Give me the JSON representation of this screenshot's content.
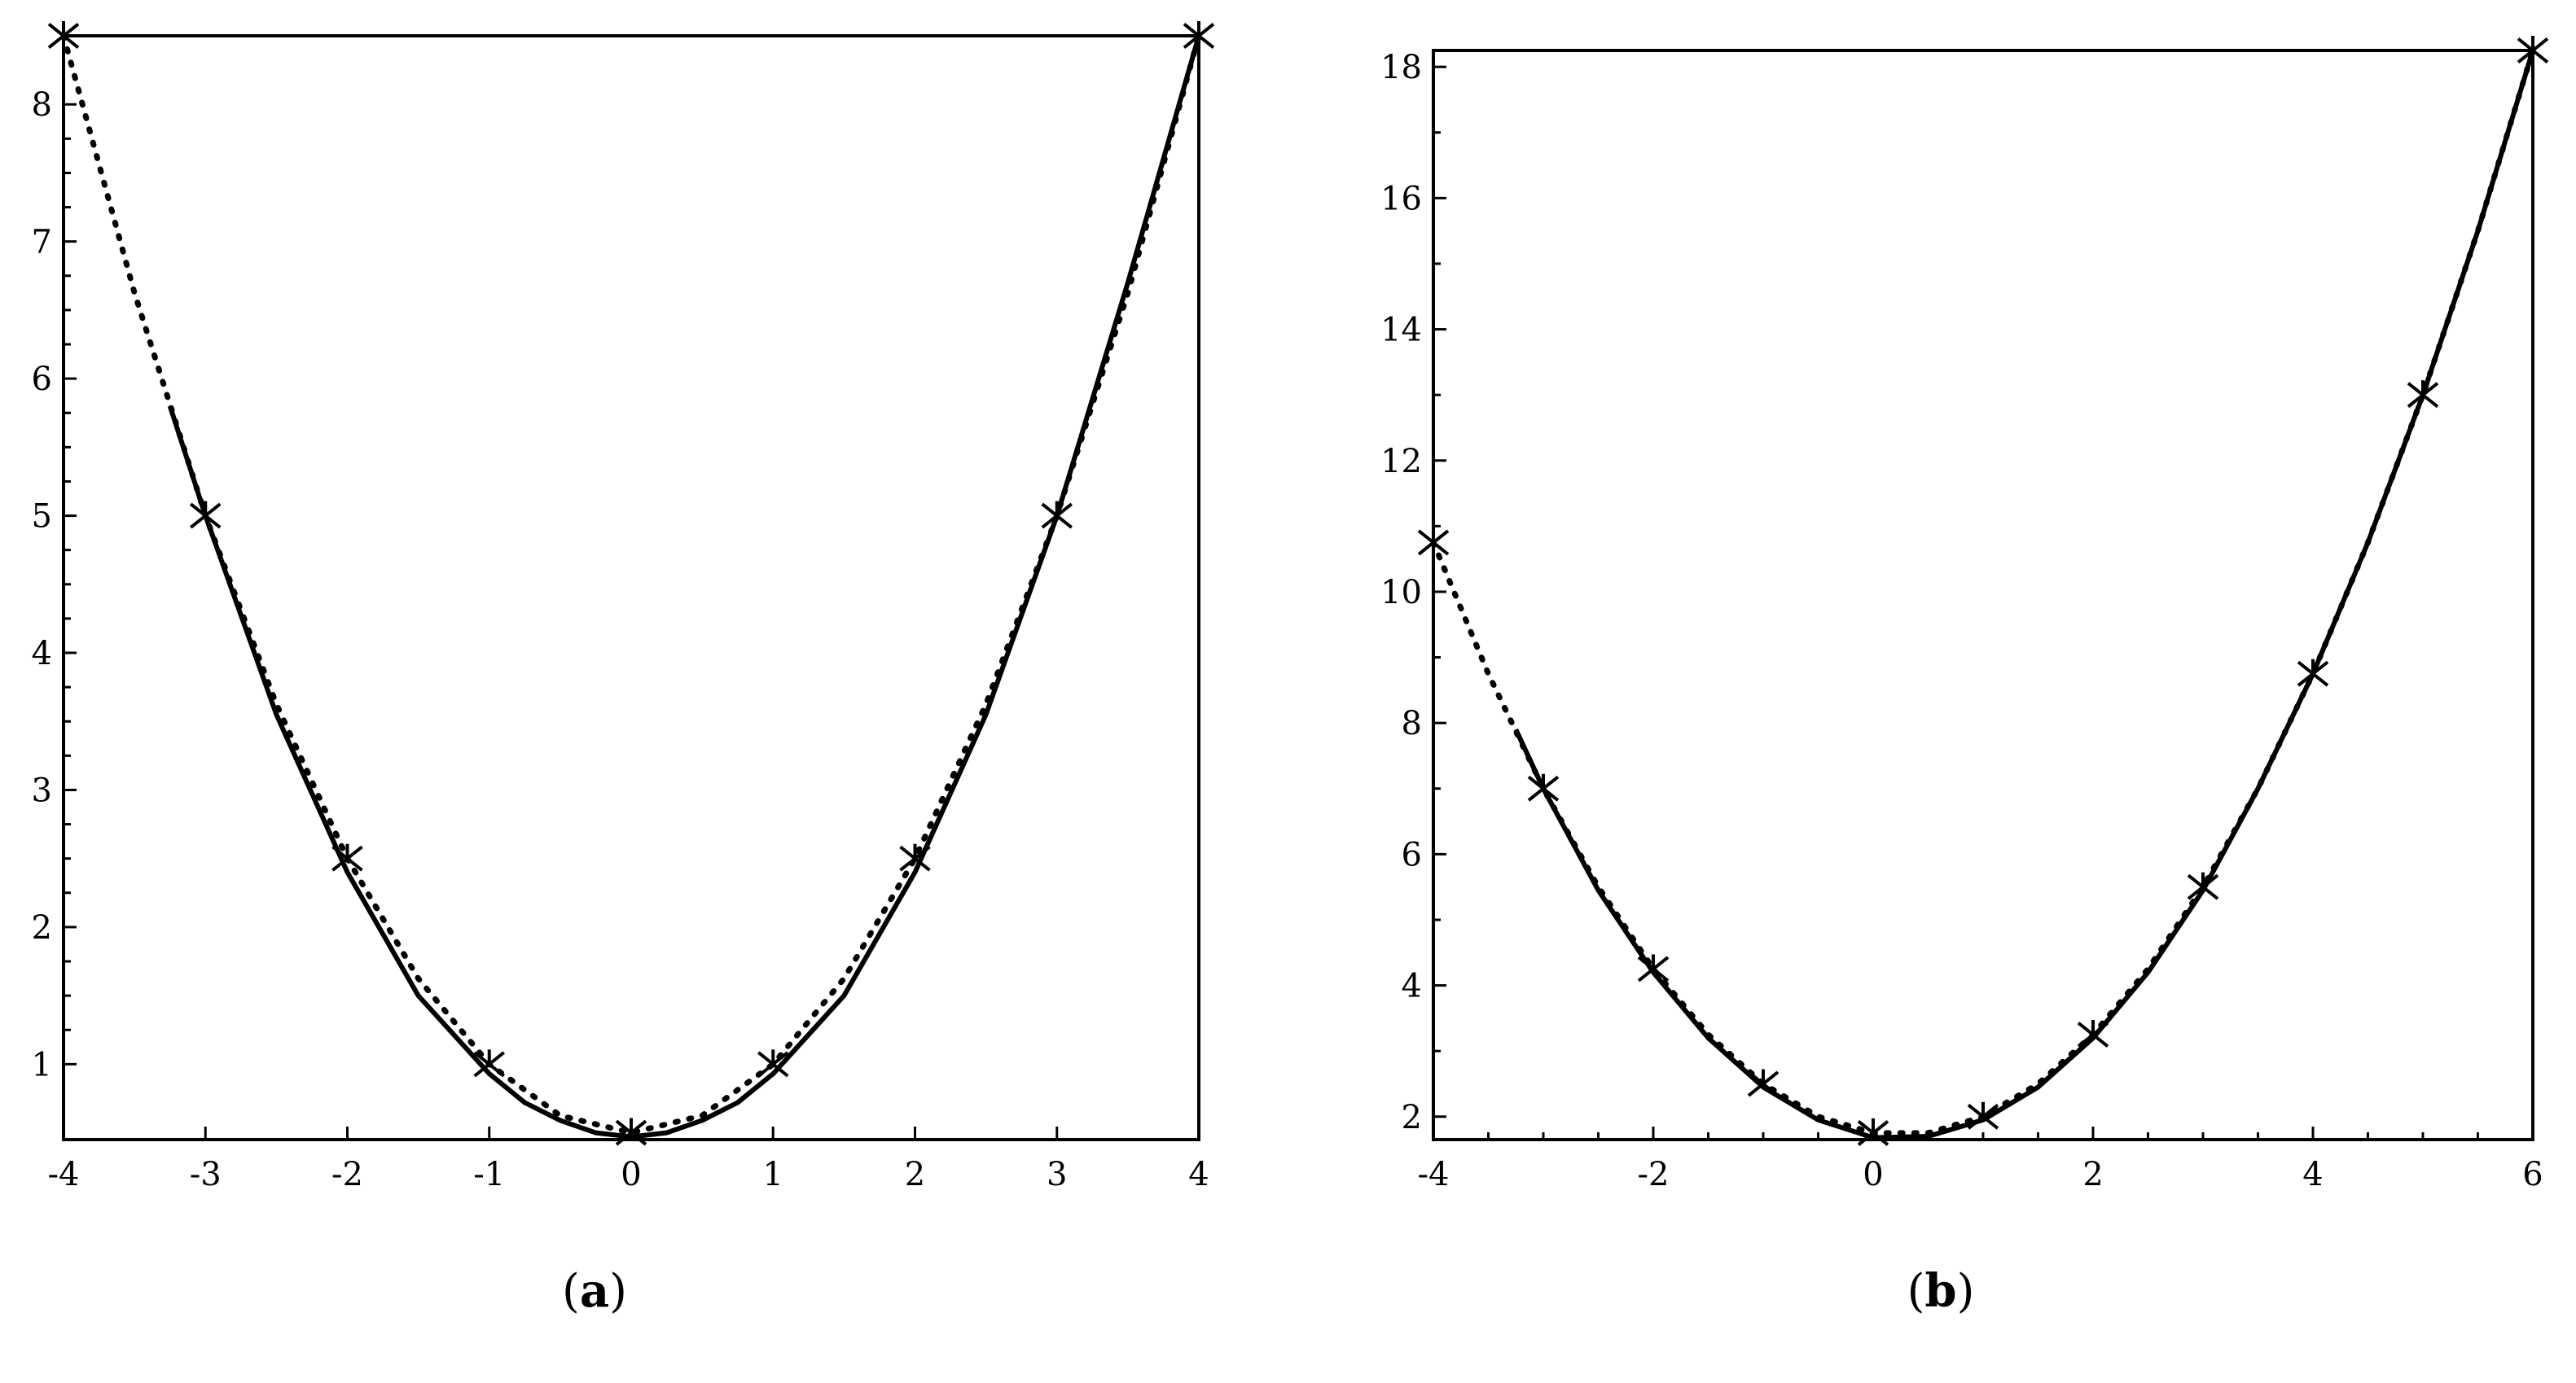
{
  "chart_data": [
    {
      "type": "line",
      "panel": "a",
      "caption": {
        "open": "(",
        "letter": "a",
        "close": ")"
      },
      "title": "",
      "xlabel": "",
      "ylabel": "",
      "xlim": [
        -4,
        4
      ],
      "ylim": [
        0.45,
        8.5
      ],
      "grid": false,
      "xticks": [
        -4,
        -3,
        -2,
        -1,
        0,
        1,
        2,
        3,
        4
      ],
      "yticks": [
        1,
        2,
        3,
        4,
        5,
        6,
        7,
        8
      ],
      "xtick_labels": [
        "-4",
        "-3",
        "-2",
        "-1",
        "0",
        "1",
        "2",
        "3",
        "4"
      ],
      "ytick_labels": [
        "1",
        "2",
        "3",
        "4",
        "5",
        "6",
        "7",
        "8"
      ],
      "series": [
        {
          "style": "dotted",
          "x": [
            -4,
            -3.5,
            -3,
            -2.5,
            -2,
            -1.5,
            -1,
            -0.5,
            0,
            0.5,
            1,
            1.5,
            2,
            2.5,
            3,
            3.5,
            4
          ],
          "y": [
            8.5,
            6.625,
            5.0,
            3.625,
            2.5,
            1.625,
            1.0,
            0.625,
            0.5,
            0.625,
            1.0,
            1.625,
            2.5,
            3.625,
            5.0,
            6.625,
            8.5
          ]
        },
        {
          "style": "solid",
          "x": [
            -3.25,
            -3,
            -2.5,
            -2,
            -1.5,
            -1,
            -0.75,
            -0.5,
            -0.25,
            0,
            0.25,
            0.5,
            0.75,
            1,
            1.5,
            2,
            2.5,
            3,
            3.5,
            4
          ],
          "y": [
            5.8,
            5.0,
            3.55,
            2.4,
            1.5,
            0.93,
            0.72,
            0.59,
            0.5,
            0.47,
            0.5,
            0.59,
            0.72,
            0.93,
            1.5,
            2.4,
            3.55,
            5.0,
            6.7,
            8.5
          ]
        },
        {
          "style": "markers",
          "x": [
            -4,
            -3,
            -2,
            -1,
            0,
            1,
            2,
            3,
            4
          ],
          "y": [
            8.5,
            5.0,
            2.5,
            1.0,
            0.5,
            1.0,
            2.5,
            5.0,
            8.5
          ]
        }
      ]
    },
    {
      "type": "line",
      "panel": "b",
      "caption": {
        "open": "(",
        "letter": "b",
        "close": ")"
      },
      "title": "",
      "xlabel": "",
      "ylabel": "",
      "xlim": [
        -4,
        6
      ],
      "ylim": [
        1.65,
        18.25
      ],
      "grid": false,
      "xticks": [
        -4,
        -2,
        0,
        2,
        4,
        6
      ],
      "yticks": [
        2,
        4,
        6,
        8,
        10,
        12,
        14,
        16,
        18
      ],
      "xtick_labels": [
        "-4",
        "-2",
        "0",
        "2",
        "4",
        "6"
      ],
      "ytick_labels": [
        "2",
        "4",
        "6",
        "8",
        "10",
        "12",
        "14",
        "16",
        "18"
      ],
      "series": [
        {
          "style": "dotted",
          "x": [
            -4,
            -3.5,
            -3,
            -2.5,
            -2,
            -1.5,
            -1,
            -0.5,
            0,
            0.5,
            1,
            1.5,
            2,
            2.5,
            3,
            3.5,
            4,
            4.5,
            5,
            5.5,
            6
          ],
          "y": [
            10.75,
            8.75,
            7.0,
            5.5,
            4.25,
            3.25,
            2.5,
            2.0,
            1.75,
            1.75,
            2.0,
            2.5,
            3.25,
            4.25,
            5.5,
            7.0,
            8.75,
            10.75,
            13.0,
            15.5,
            18.25
          ]
        },
        {
          "style": "solid",
          "x": [
            -3.25,
            -3,
            -2.5,
            -2,
            -1.5,
            -1,
            -0.5,
            0,
            0.5,
            1,
            1.5,
            2,
            2.5,
            3,
            3.5,
            4,
            4.5,
            5,
            5.5,
            6
          ],
          "y": [
            7.9,
            7.0,
            5.45,
            4.2,
            3.2,
            2.45,
            1.95,
            1.68,
            1.7,
            1.95,
            2.45,
            3.2,
            4.2,
            5.45,
            7.0,
            8.75,
            10.75,
            13.0,
            15.5,
            18.25
          ]
        },
        {
          "style": "markers",
          "x": [
            -4,
            -3,
            -2,
            -1,
            0,
            1,
            2,
            3,
            4,
            5,
            6
          ],
          "y": [
            10.75,
            7.0,
            4.25,
            2.5,
            1.75,
            2.0,
            3.25,
            5.5,
            8.75,
            13.0,
            18.25
          ]
        }
      ]
    }
  ]
}
